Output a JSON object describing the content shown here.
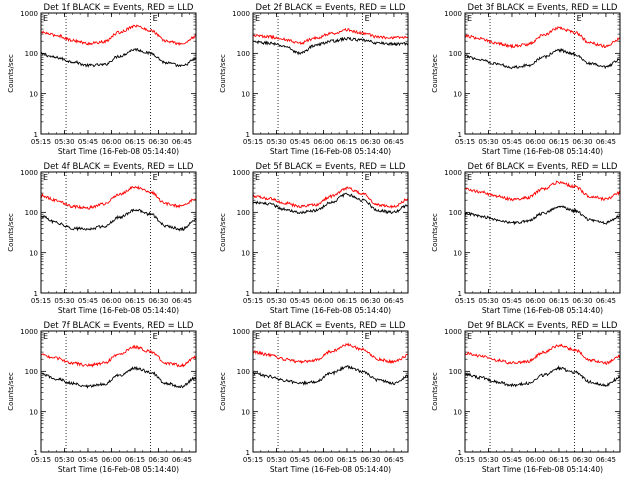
{
  "chart_data": [
    {
      "type": "line",
      "title": "Det 1f BLACK = Events, RED = LLD",
      "xlabel": "Start Time (16-Feb-08 05:14:40)",
      "ylabel": "Counts/sec",
      "log_y": true,
      "ylim": [
        1,
        1000
      ],
      "xlim": [
        "05:15",
        "06:54"
      ],
      "x_tick_labels": [
        "05:15",
        "05:30",
        "05:45",
        "06:00",
        "06:15",
        "06:30",
        "06:45"
      ],
      "y_tick_labels": [
        "1",
        "10",
        "100",
        "1000"
      ],
      "grid": false,
      "vertical_markers": [
        "05:31",
        "06:25"
      ],
      "marker_labels": [
        "E"
      ],
      "x": [
        "05:15",
        "05:25",
        "05:35",
        "05:45",
        "05:55",
        "06:05",
        "06:15",
        "06:25",
        "06:35",
        "06:45",
        "06:54"
      ],
      "series": [
        {
          "name": "BLACK = Events",
          "color": "#000000",
          "values": [
            95,
            78,
            62,
            50,
            52,
            85,
            125,
            100,
            58,
            48,
            72
          ]
        },
        {
          "name": "RED = LLD",
          "color": "#ff0000",
          "values": [
            330,
            280,
            210,
            175,
            190,
            330,
            480,
            370,
            200,
            170,
            260
          ]
        }
      ]
    },
    {
      "type": "line",
      "title": "Det 2f BLACK = Events, RED = LLD",
      "xlabel": "Start Time (16-Feb-08 05:14:40)",
      "ylabel": "Counts/sec",
      "log_y": true,
      "ylim": [
        1,
        1000
      ],
      "xlim": [
        "05:15",
        "06:54"
      ],
      "x_tick_labels": [
        "05:15",
        "05:30",
        "05:45",
        "06:00",
        "06:15",
        "06:30",
        "06:45"
      ],
      "y_tick_labels": [
        "1",
        "10",
        "100",
        "1000"
      ],
      "grid": false,
      "vertical_markers": [
        "05:31",
        "06:25"
      ],
      "marker_labels": [
        "E"
      ],
      "x": [
        "05:15",
        "05:25",
        "05:35",
        "05:45",
        "05:55",
        "06:05",
        "06:15",
        "06:25",
        "06:35",
        "06:45",
        "06:54"
      ],
      "series": [
        {
          "name": "BLACK = Events",
          "color": "#000000",
          "values": [
            190,
            180,
            150,
            100,
            160,
            200,
            230,
            210,
            180,
            170,
            175
          ]
        },
        {
          "name": "RED = LLD",
          "color": "#ff0000",
          "values": [
            280,
            260,
            220,
            180,
            240,
            310,
            380,
            320,
            250,
            240,
            250
          ]
        }
      ]
    },
    {
      "type": "line",
      "title": "Det 3f BLACK = Events, RED = LLD",
      "xlabel": "Start Time (16-Feb-08 05:14:40)",
      "ylabel": "Counts/sec",
      "log_y": true,
      "ylim": [
        1,
        1000
      ],
      "xlim": [
        "05:15",
        "06:54"
      ],
      "x_tick_labels": [
        "05:15",
        "05:30",
        "05:45",
        "06:00",
        "06:15",
        "06:30",
        "06:45"
      ],
      "y_tick_labels": [
        "1",
        "10",
        "100",
        "1000"
      ],
      "grid": false,
      "vertical_markers": [
        "05:31",
        "06:25"
      ],
      "marker_labels": [
        "E"
      ],
      "x": [
        "05:15",
        "05:25",
        "05:35",
        "05:45",
        "05:55",
        "06:05",
        "06:15",
        "06:25",
        "06:35",
        "06:45",
        "06:54"
      ],
      "series": [
        {
          "name": "BLACK = Events",
          "color": "#000000",
          "values": [
            85,
            70,
            55,
            45,
            50,
            80,
            120,
            95,
            55,
            45,
            70
          ]
        },
        {
          "name": "RED = LLD",
          "color": "#ff0000",
          "values": [
            270,
            230,
            180,
            150,
            165,
            280,
            430,
            330,
            180,
            150,
            230
          ]
        }
      ]
    },
    {
      "type": "line",
      "title": "Det 4f BLACK = Events, RED = LLD",
      "xlabel": "Start Time (16-Feb-08 05:14:40)",
      "ylabel": "Counts/sec",
      "log_y": true,
      "ylim": [
        1,
        1000
      ],
      "xlim": [
        "05:15",
        "06:54"
      ],
      "x_tick_labels": [
        "05:15",
        "05:30",
        "05:45",
        "06:00",
        "06:15",
        "06:30",
        "06:45"
      ],
      "y_tick_labels": [
        "1",
        "10",
        "100",
        "1000"
      ],
      "grid": false,
      "vertical_markers": [
        "05:31",
        "06:25"
      ],
      "marker_labels": [
        "E"
      ],
      "x": [
        "05:15",
        "05:25",
        "05:35",
        "05:45",
        "05:55",
        "06:05",
        "06:15",
        "06:25",
        "06:35",
        "06:45",
        "06:54"
      ],
      "series": [
        {
          "name": "BLACK = Events",
          "color": "#000000",
          "values": [
            80,
            55,
            40,
            38,
            45,
            75,
            115,
            90,
            45,
            38,
            65
          ]
        },
        {
          "name": "RED = LLD",
          "color": "#ff0000",
          "values": [
            260,
            200,
            140,
            130,
            160,
            280,
            420,
            320,
            160,
            140,
            220
          ]
        }
      ]
    },
    {
      "type": "line",
      "title": "Det 5f BLACK = Events, RED = LLD",
      "xlabel": "Start Time (16-Feb-08 05:14:40)",
      "ylabel": "Counts/sec",
      "log_y": true,
      "ylim": [
        1,
        1000
      ],
      "xlim": [
        "05:15",
        "06:54"
      ],
      "x_tick_labels": [
        "05:15",
        "05:30",
        "05:45",
        "06:00",
        "06:15",
        "06:30",
        "06:45"
      ],
      "y_tick_labels": [
        "1",
        "10",
        "100",
        "1000"
      ],
      "grid": false,
      "vertical_markers": [
        "05:31",
        "06:25"
      ],
      "marker_labels": [
        "E"
      ],
      "x": [
        "05:15",
        "05:25",
        "05:35",
        "05:45",
        "05:55",
        "06:05",
        "06:15",
        "06:25",
        "06:35",
        "06:45",
        "06:54"
      ],
      "series": [
        {
          "name": "BLACK = Events",
          "color": "#000000",
          "values": [
            180,
            160,
            120,
            100,
            110,
            180,
            280,
            200,
            110,
            100,
            150
          ]
        },
        {
          "name": "RED = LLD",
          "color": "#ff0000",
          "values": [
            250,
            220,
            170,
            140,
            155,
            250,
            400,
            290,
            150,
            140,
            210
          ]
        }
      ]
    },
    {
      "type": "line",
      "title": "Det 6f BLACK = Events, RED = LLD",
      "xlabel": "Start Time (16-Feb-08 05:14:40)",
      "ylabel": "Counts/sec",
      "log_y": true,
      "ylim": [
        1,
        1000
      ],
      "xlim": [
        "05:15",
        "06:54"
      ],
      "x_tick_labels": [
        "05:15",
        "05:30",
        "05:45",
        "06:00",
        "06:15",
        "06:30",
        "06:45"
      ],
      "y_tick_labels": [
        "1",
        "10",
        "100",
        "1000"
      ],
      "grid": false,
      "vertical_markers": [
        "05:31",
        "06:25"
      ],
      "marker_labels": [
        "E"
      ],
      "x": [
        "05:15",
        "05:25",
        "05:35",
        "05:45",
        "05:55",
        "06:05",
        "06:15",
        "06:25",
        "06:35",
        "06:45",
        "06:54"
      ],
      "series": [
        {
          "name": "BLACK = Events",
          "color": "#000000",
          "values": [
            95,
            80,
            65,
            55,
            60,
            95,
            140,
            110,
            65,
            55,
            80
          ]
        },
        {
          "name": "RED = LLD",
          "color": "#ff0000",
          "values": [
            380,
            320,
            250,
            210,
            230,
            380,
            560,
            430,
            250,
            210,
            300
          ]
        }
      ]
    },
    {
      "type": "line",
      "title": "Det 7f BLACK = Events, RED = LLD",
      "xlabel": "Start Time (16-Feb-08 05:14:40)",
      "ylabel": "Counts/sec",
      "log_y": true,
      "ylim": [
        1,
        1000
      ],
      "xlim": [
        "05:15",
        "06:54"
      ],
      "x_tick_labels": [
        "05:15",
        "05:30",
        "05:45",
        "06:00",
        "06:15",
        "06:30",
        "06:45"
      ],
      "y_tick_labels": [
        "1",
        "10",
        "100",
        "1000"
      ],
      "grid": false,
      "vertical_markers": [
        "05:31",
        "06:25"
      ],
      "marker_labels": [
        "E"
      ],
      "x": [
        "05:15",
        "05:25",
        "05:35",
        "05:45",
        "05:55",
        "06:05",
        "06:15",
        "06:25",
        "06:35",
        "06:45",
        "06:54"
      ],
      "series": [
        {
          "name": "BLACK = Events",
          "color": "#000000",
          "values": [
            85,
            65,
            50,
            42,
            48,
            80,
            120,
            95,
            50,
            42,
            70
          ]
        },
        {
          "name": "RED = LLD",
          "color": "#ff0000",
          "values": [
            260,
            210,
            160,
            140,
            160,
            270,
            400,
            310,
            160,
            140,
            220
          ]
        }
      ]
    },
    {
      "type": "line",
      "title": "Det 8f BLACK = Events, RED = LLD",
      "xlabel": "Start Time (16-Feb-08 05:14:40)",
      "ylabel": "Counts/sec",
      "log_y": true,
      "ylim": [
        1,
        1000
      ],
      "xlim": [
        "05:15",
        "06:54"
      ],
      "x_tick_labels": [
        "05:15",
        "05:30",
        "05:45",
        "06:00",
        "06:15",
        "06:30",
        "06:45"
      ],
      "y_tick_labels": [
        "1",
        "10",
        "100",
        "1000"
      ],
      "grid": false,
      "vertical_markers": [
        "05:31",
        "06:25"
      ],
      "marker_labels": [
        "E"
      ],
      "x": [
        "05:15",
        "05:25",
        "05:35",
        "05:45",
        "05:55",
        "06:05",
        "06:15",
        "06:25",
        "06:35",
        "06:45",
        "06:54"
      ],
      "series": [
        {
          "name": "BLACK = Events",
          "color": "#000000",
          "values": [
            90,
            75,
            60,
            50,
            55,
            90,
            130,
            100,
            60,
            50,
            75
          ]
        },
        {
          "name": "RED = LLD",
          "color": "#ff0000",
          "values": [
            300,
            260,
            200,
            170,
            190,
            310,
            460,
            350,
            200,
            170,
            250
          ]
        }
      ]
    },
    {
      "type": "line",
      "title": "Det 9f BLACK = Events, RED = LLD",
      "xlabel": "Start Time (16-Feb-08 05:14:40)",
      "ylabel": "Counts/sec",
      "log_y": true,
      "ylim": [
        1,
        1000
      ],
      "xlim": [
        "05:15",
        "06:54"
      ],
      "x_tick_labels": [
        "05:15",
        "05:30",
        "05:45",
        "06:00",
        "06:15",
        "06:30",
        "06:45"
      ],
      "y_tick_labels": [
        "1",
        "10",
        "100",
        "1000"
      ],
      "grid": false,
      "vertical_markers": [
        "05:31",
        "06:25"
      ],
      "marker_labels": [
        "E"
      ],
      "x": [
        "05:15",
        "05:25",
        "05:35",
        "05:45",
        "05:55",
        "06:05",
        "06:15",
        "06:25",
        "06:35",
        "06:45",
        "06:54"
      ],
      "series": [
        {
          "name": "BLACK = Events",
          "color": "#000000",
          "values": [
            85,
            70,
            55,
            45,
            50,
            80,
            120,
            95,
            55,
            45,
            70
          ]
        },
        {
          "name": "RED = LLD",
          "color": "#ff0000",
          "values": [
            280,
            240,
            190,
            160,
            175,
            290,
            440,
            340,
            190,
            160,
            240
          ]
        }
      ]
    }
  ]
}
